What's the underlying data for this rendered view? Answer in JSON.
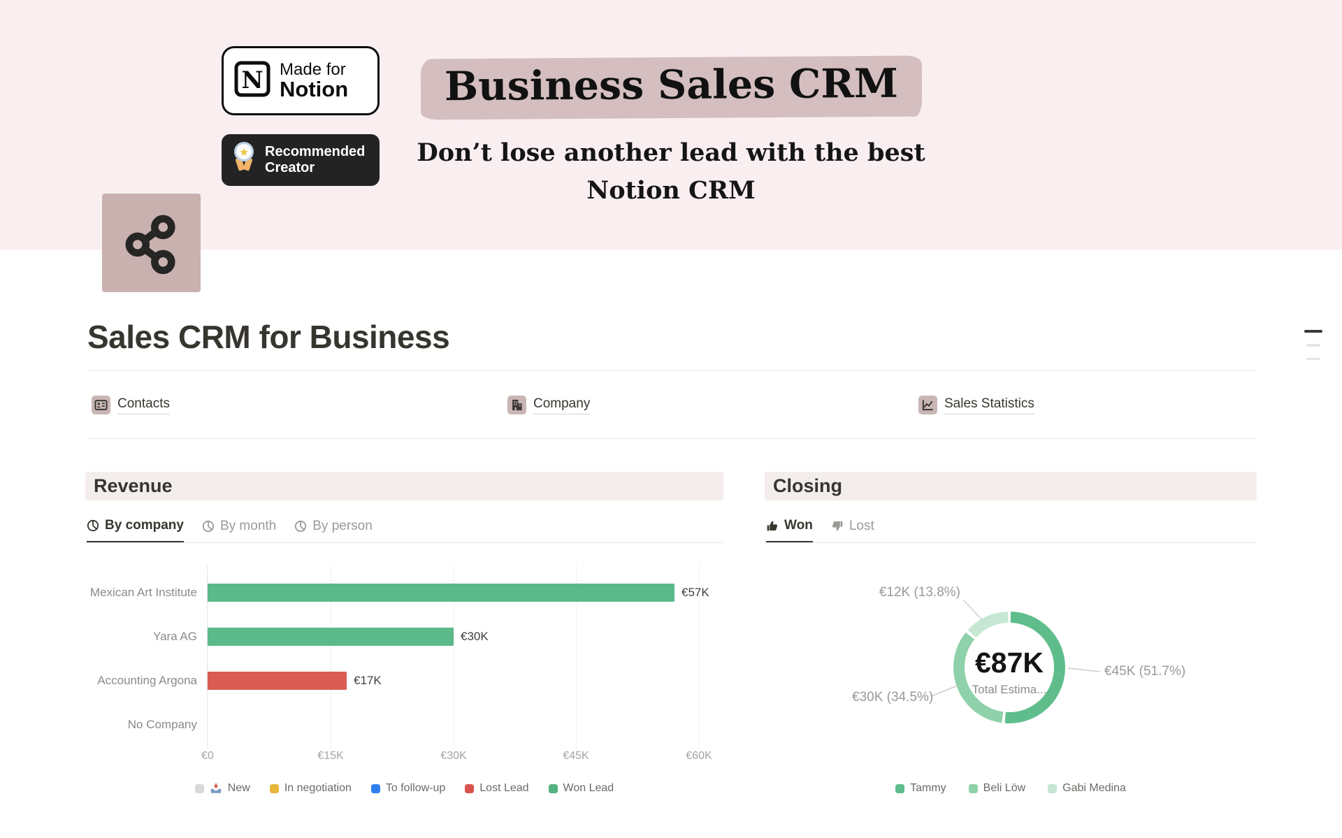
{
  "cover": {
    "bg_color": "#f9eef0",
    "made_for_notion": {
      "top": "Made for",
      "bottom": "Notion"
    },
    "recommended_creator": {
      "top": "Recommended",
      "bottom": "Creator"
    },
    "title": "Business Sales CRM",
    "title_highlight_color": "#d4bec0",
    "subtitle_line1": "Don’t lose another lead with the best",
    "subtitle_line2": "Notion CRM"
  },
  "page": {
    "title": "Sales CRM for Business",
    "icon": "share-network-icon"
  },
  "nav": [
    {
      "label": "Contacts",
      "icon": "contact-card-icon"
    },
    {
      "label": "Company",
      "icon": "building-icon"
    },
    {
      "label": "Sales Statistics",
      "icon": "line-chart-icon"
    }
  ],
  "revenue": {
    "section_title": "Revenue",
    "tabs": [
      {
        "label": "By company",
        "icon": "pie-chart-icon",
        "active": true
      },
      {
        "label": "By month",
        "icon": "pie-chart-icon",
        "active": false
      },
      {
        "label": "By person",
        "icon": "pie-chart-icon",
        "active": false
      }
    ]
  },
  "closing": {
    "section_title": "Closing",
    "tabs": [
      {
        "label": "Won",
        "icon": "thumbs-up-icon",
        "active": true
      },
      {
        "label": "Lost",
        "icon": "thumbs-down-icon",
        "active": false
      }
    ]
  },
  "chart_data": [
    {
      "type": "bar",
      "title": "Revenue — By company",
      "orientation": "horizontal",
      "categories": [
        "Mexican Art Institute",
        "Yara AG",
        "Accounting Argona",
        "No Company"
      ],
      "values": [
        57000,
        30000,
        17000,
        0
      ],
      "value_labels": [
        "€57K",
        "€30K",
        "€17K",
        ""
      ],
      "bar_colors": [
        "#5cb98a",
        "#5cb98a",
        "#da5b53",
        null
      ],
      "x_ticks": [
        "€0",
        "€15K",
        "€30K",
        "€45K",
        "€60K"
      ],
      "xlim": [
        0,
        60000
      ],
      "grid": "dotted-vertical",
      "legend_position": "bottom",
      "legend": [
        {
          "label": "New",
          "color": "#d8d8d6"
        },
        {
          "label": "In negotiation",
          "color": "#e9b63c"
        },
        {
          "label": "To follow-up",
          "color": "#2e7ff0"
        },
        {
          "label": "Lost Lead",
          "color": "#d8524e"
        },
        {
          "label": "Won Lead",
          "color": "#53b281"
        }
      ]
    },
    {
      "type": "pie",
      "title": "Closing — Won",
      "center_value": "€87K",
      "center_label": "Total Estima...",
      "legend_position": "bottom",
      "slices": [
        {
          "name": "Tammy",
          "value": 45000,
          "pct": 51.7,
          "value_label": "€45K (51.7%)",
          "color": "#5fbd8c"
        },
        {
          "name": "Beli Löw",
          "value": 30000,
          "pct": 34.5,
          "value_label": "€30K (34.5%)",
          "color": "#8fd1aa"
        },
        {
          "name": "Gabi Medina",
          "value": 12000,
          "pct": 13.8,
          "value_label": "€12K (13.8%)",
          "color": "#c6e8d3"
        }
      ]
    }
  ]
}
